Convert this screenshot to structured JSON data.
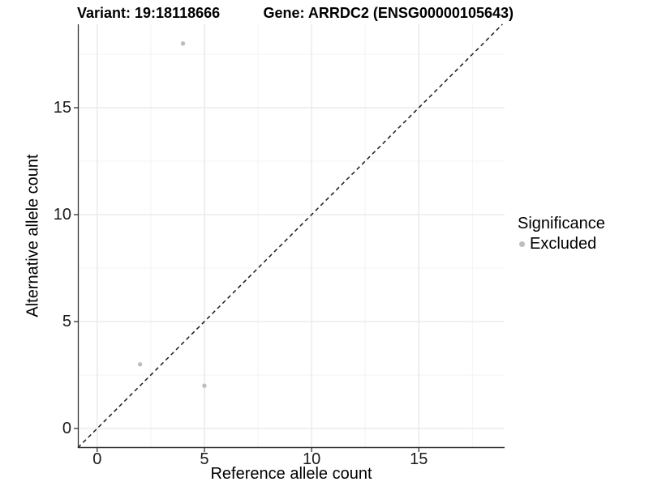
{
  "colors": {
    "background": "#ffffff",
    "point": "#bdbdbd",
    "grid_major": "#e7e7e7",
    "grid_minor": "#f3f3f3",
    "axis_line": "#333333",
    "tick_text": "#1a1a1a",
    "identity_line": "#1a1a1a"
  },
  "chart_data": {
    "type": "scatter",
    "title_left": "Variant: 19:18118666",
    "title_right": "Gene: ARRDC2 (ENSG00000105643)",
    "xlabel": "Reference allele count",
    "ylabel": "Alternative allele count",
    "xlim": [
      -0.9,
      19.0
    ],
    "ylim": [
      -0.91,
      18.9
    ],
    "xticks": [
      0,
      5,
      10,
      15
    ],
    "yticks": [
      0,
      5,
      10,
      15
    ],
    "minor_ticks": [
      2.5,
      7.5,
      12.5,
      17.5
    ],
    "grid": "major and minor, light gray on white",
    "identity_line": {
      "style": "dashed",
      "slope": 1,
      "intercept": 0,
      "from": -0.9,
      "to": 18.9
    },
    "series": [
      {
        "name": "Excluded",
        "color": "#bdbdbd",
        "points": [
          {
            "x": 4,
            "y": 18
          },
          {
            "x": 2,
            "y": 3
          },
          {
            "x": 5,
            "y": 2
          }
        ]
      }
    ],
    "legend": {
      "position": "right",
      "title": "Significance",
      "items": [
        {
          "label": "Excluded",
          "color": "#bdbdbd"
        }
      ]
    }
  }
}
